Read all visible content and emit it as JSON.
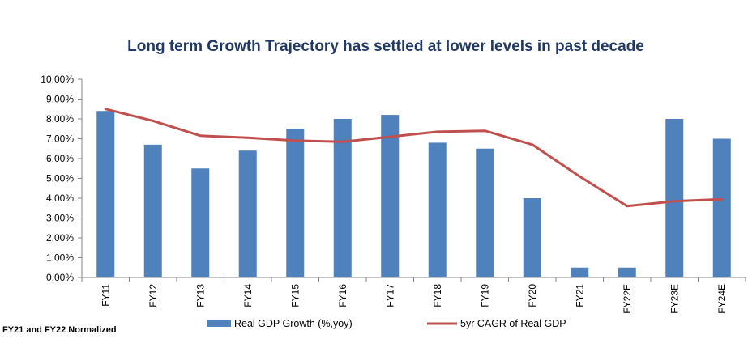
{
  "chart_data": {
    "type": "bar",
    "title": "Long term Growth Trajectory  has settled at lower levels in past decade",
    "categories": [
      "FY11",
      "FY12",
      "FY13",
      "FY14",
      "FY15",
      "FY16",
      "FY17",
      "FY18",
      "FY19",
      "FY20",
      "FY21",
      "FY22E",
      "FY23E",
      "FY24E"
    ],
    "series": [
      {
        "name": "Real GDP Growth (%,yoy)",
        "kind": "bar",
        "color": "#4f81bd",
        "values": [
          8.4,
          6.7,
          5.5,
          6.4,
          7.5,
          8.0,
          8.2,
          6.8,
          6.5,
          4.0,
          0.5,
          0.5,
          8.0,
          7.0
        ]
      },
      {
        "name": "5yr CAGR of Real GDP",
        "kind": "line",
        "color": "#c0504d",
        "values": [
          8.5,
          7.9,
          7.15,
          7.05,
          6.9,
          6.85,
          7.1,
          7.35,
          7.4,
          6.7,
          5.1,
          3.6,
          3.85,
          3.95
        ]
      }
    ],
    "ylim": [
      0,
      10
    ],
    "ytick_labels": [
      "0.00%",
      "1.00%",
      "2.00%",
      "3.00%",
      "4.00%",
      "5.00%",
      "6.00%",
      "7.00%",
      "8.00%",
      "9.00%",
      "10.00%"
    ],
    "xlabel": "",
    "ylabel": "",
    "grid": false,
    "legend": "bottom"
  },
  "footnote": "FY21 and FY22 Normalized"
}
